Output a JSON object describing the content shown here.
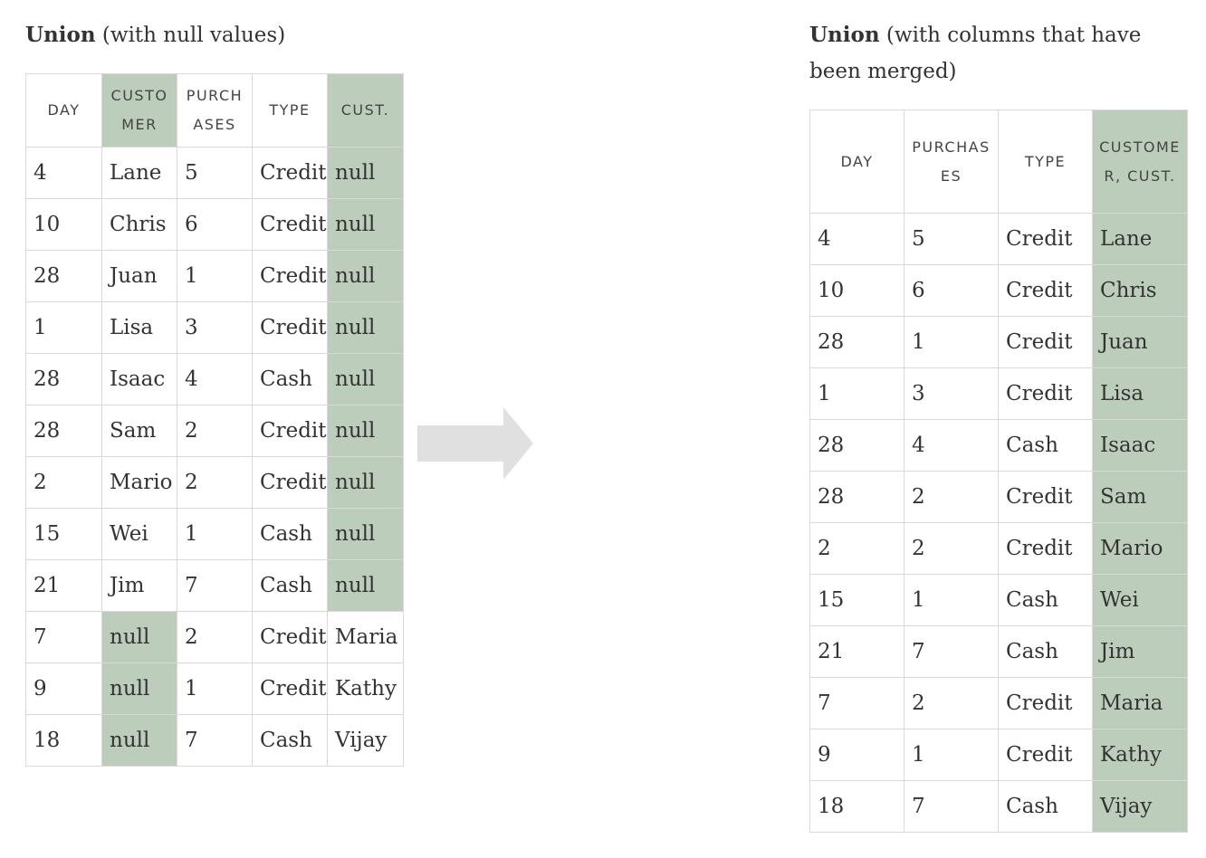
{
  "left": {
    "title_bold": "Union",
    "title_rest": " (with null values)",
    "headers": [
      "DAY",
      "CUSTOMER",
      "PURCHASES",
      "TYPE",
      "CUST."
    ],
    "rows": [
      [
        "4",
        "Lane",
        "5",
        "Credit",
        "null"
      ],
      [
        "10",
        "Chris",
        "6",
        "Credit",
        "null"
      ],
      [
        "28",
        "Juan",
        "1",
        "Credit",
        "null"
      ],
      [
        "1",
        "Lisa",
        "3",
        "Credit",
        "null"
      ],
      [
        "28",
        "Isaac",
        "4",
        "Cash",
        "null"
      ],
      [
        "28",
        "Sam",
        "2",
        "Credit",
        "null"
      ],
      [
        "2",
        "Mario",
        "2",
        "Credit",
        "null"
      ],
      [
        "15",
        "Wei",
        "1",
        "Cash",
        "null"
      ],
      [
        "21",
        "Jim",
        "7",
        "Cash",
        "null"
      ],
      [
        "7",
        "null",
        "2",
        "Credit",
        "Maria"
      ],
      [
        "9",
        "null",
        "1",
        "Credit",
        "Kathy"
      ],
      [
        "18",
        "null",
        "7",
        "Cash",
        "Vijay"
      ]
    ]
  },
  "right": {
    "title_bold": "Union",
    "title_rest": " (with columns that have been merged)",
    "headers": [
      "DAY",
      "PURCHASES",
      "TYPE",
      "CUSTOMER, CUST."
    ],
    "rows": [
      [
        "4",
        "5",
        "Credit",
        "Lane"
      ],
      [
        "10",
        "6",
        "Credit",
        "Chris"
      ],
      [
        "28",
        "1",
        "Credit",
        "Juan"
      ],
      [
        "1",
        "3",
        "Credit",
        "Lisa"
      ],
      [
        "28",
        "4",
        "Cash",
        "Isaac"
      ],
      [
        "28",
        "2",
        "Credit",
        "Sam"
      ],
      [
        "2",
        "2",
        "Credit",
        "Mario"
      ],
      [
        "15",
        "1",
        "Cash",
        "Wei"
      ],
      [
        "21",
        "7",
        "Cash",
        "Jim"
      ],
      [
        "7",
        "2",
        "Credit",
        "Maria"
      ],
      [
        "9",
        "1",
        "Credit",
        "Kathy"
      ],
      [
        "18",
        "7",
        "Cash",
        "Vijay"
      ]
    ]
  },
  "colors": {
    "highlight": "#bccebb",
    "border": "#d9d9d9",
    "arrow": "#e0e0e0",
    "text": "#333333"
  },
  "icons": {
    "arrow": "right-arrow-icon"
  }
}
